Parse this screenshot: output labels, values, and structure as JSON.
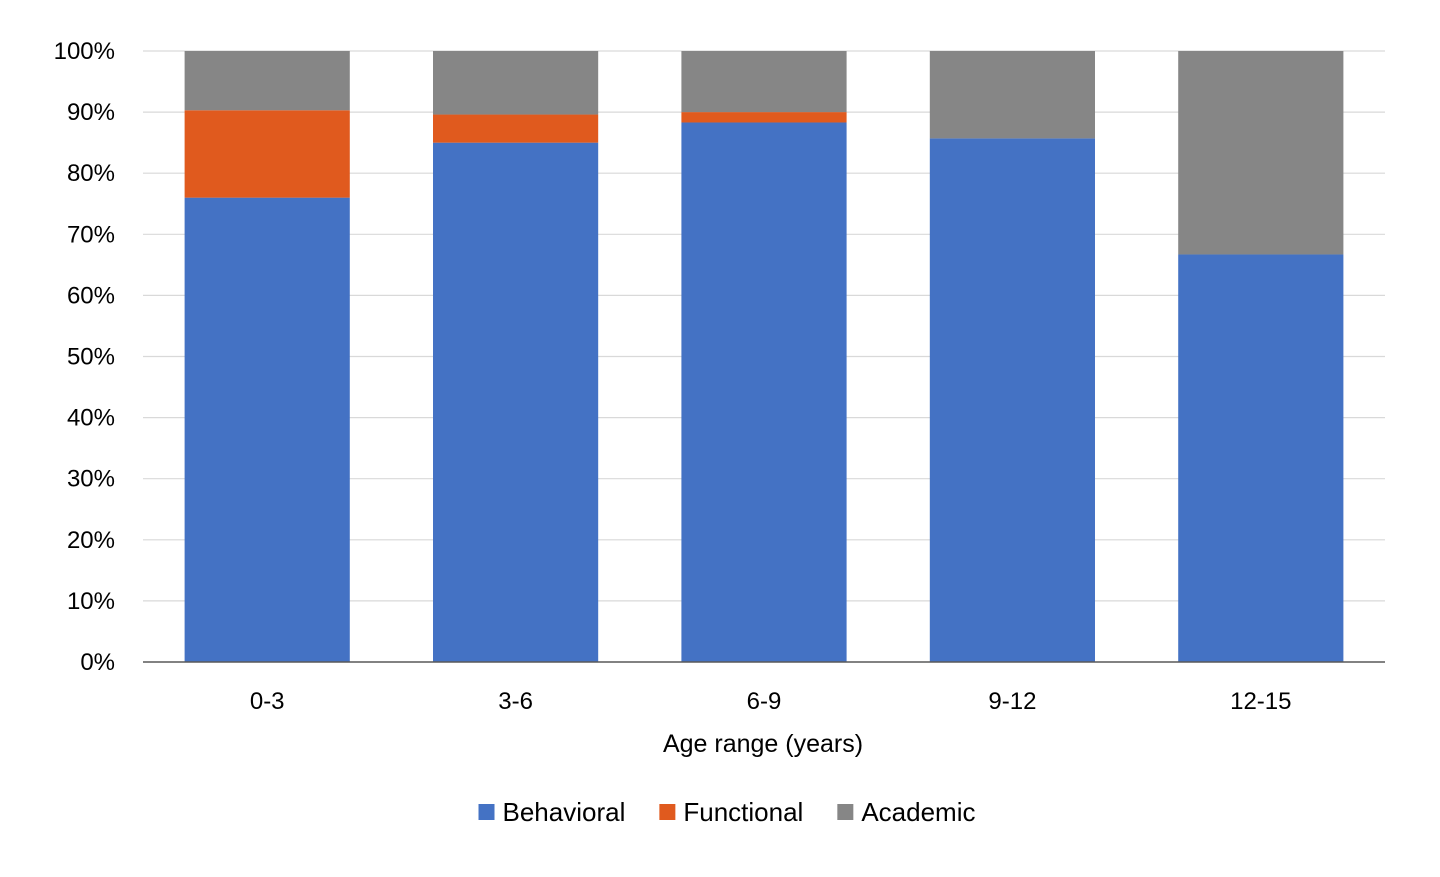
{
  "chart_data": {
    "type": "bar",
    "stacked": true,
    "categories": [
      "0-3",
      "3-6",
      "6-9",
      "9-12",
      "12-15"
    ],
    "series": [
      {
        "name": "Behavioral",
        "color": "#4472C4",
        "values": [
          76,
          85,
          88.3,
          85.7,
          66.7
        ]
      },
      {
        "name": "Functional",
        "color": "#E05A1E",
        "values": [
          14.3,
          4.6,
          1.7,
          0,
          0
        ]
      },
      {
        "name": "Academic",
        "color": "#868686",
        "values": [
          9.7,
          10.4,
          10,
          14.3,
          33.3
        ]
      }
    ],
    "title": "",
    "xlabel": "Age range (years)",
    "ylabel": "",
    "ylim": [
      0,
      100
    ],
    "yticks": [
      "0%",
      "10%",
      "20%",
      "30%",
      "40%",
      "50%",
      "60%",
      "70%",
      "80%",
      "90%",
      "100%"
    ],
    "grid": true,
    "legend_position": "bottom"
  }
}
